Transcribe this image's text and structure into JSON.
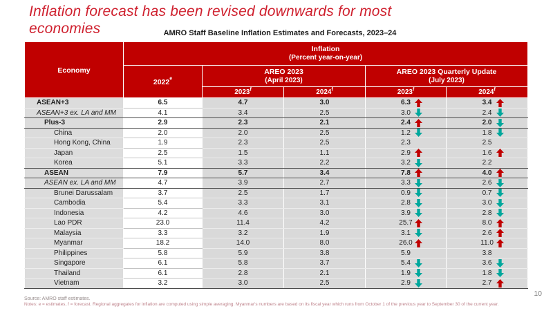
{
  "colors": {
    "header_red": "#c00000",
    "title_red": "#cf202e",
    "arrow_up": "#c00000",
    "arrow_down": "#00a79c",
    "cell_gray": "#d9d9d9"
  },
  "slide": {
    "title": "Inflation forecast has been revised downwards for most economies",
    "page_number": "10"
  },
  "table": {
    "subtitle": "AMRO Staff Baseline Inflation Estimates and Forecasts, 2023–24",
    "header": {
      "economy": "Economy",
      "inflation_line1": "Inflation",
      "inflation_line2": "(Percent year-on-year)",
      "year_2022": "2022",
      "sup_e": "e",
      "areo_line1": "AREO 2023",
      "areo_line2": "(April 2023)",
      "qu_line1": "AREO 2023 Quarterly Update",
      "qu_line2": "(July 2023)",
      "sub_2023": "2023",
      "sub_2024": "2024",
      "sup_f": "f"
    },
    "rows": [
      {
        "name": "ASEAN+3",
        "style": "bold",
        "indent": 1,
        "v2022": "6.5",
        "apr2023": "4.7",
        "apr2024": "3.0",
        "jul2023": "6.3",
        "jul2023_arrow": "up",
        "jul2024": "3.4",
        "jul2024_arrow": "up",
        "sep": false
      },
      {
        "name": "ASEAN+3 ex. LA and MM",
        "style": "italic",
        "indent": 1,
        "v2022": "4.1",
        "apr2023": "3.4",
        "apr2024": "2.5",
        "jul2023": "3.0",
        "jul2023_arrow": "down",
        "jul2024": "2.4",
        "jul2024_arrow": "down",
        "sep": true
      },
      {
        "name": "Plus-3",
        "style": "bold",
        "indent": 2,
        "v2022": "2.9",
        "apr2023": "2.3",
        "apr2024": "2.1",
        "jul2023": "2.4",
        "jul2023_arrow": "up",
        "jul2024": "2.0",
        "jul2024_arrow": "down",
        "sep": true
      },
      {
        "name": "China",
        "style": "plain",
        "indent": 3,
        "v2022": "2.0",
        "apr2023": "2.0",
        "apr2024": "2.5",
        "jul2023": "1.2",
        "jul2023_arrow": "down",
        "jul2024": "1.8",
        "jul2024_arrow": "down",
        "sep": false
      },
      {
        "name": "Hong Kong, China",
        "style": "plain",
        "indent": 3,
        "v2022": "1.9",
        "apr2023": "2.3",
        "apr2024": "2.5",
        "jul2023": "2.3",
        "jul2023_arrow": null,
        "jul2024": "2.5",
        "jul2024_arrow": null,
        "sep": false
      },
      {
        "name": "Japan",
        "style": "plain",
        "indent": 3,
        "v2022": "2.5",
        "apr2023": "1.5",
        "apr2024": "1.1",
        "jul2023": "2.9",
        "jul2023_arrow": "up",
        "jul2024": "1.6",
        "jul2024_arrow": "up",
        "sep": false
      },
      {
        "name": "Korea",
        "style": "plain",
        "indent": 3,
        "v2022": "5.1",
        "apr2023": "3.3",
        "apr2024": "2.2",
        "jul2023": "3.2",
        "jul2023_arrow": "down",
        "jul2024": "2.2",
        "jul2024_arrow": null,
        "sep": true
      },
      {
        "name": "ASEAN",
        "style": "bold",
        "indent": 2,
        "v2022": "7.9",
        "apr2023": "5.7",
        "apr2024": "3.4",
        "jul2023": "7.8",
        "jul2023_arrow": "up",
        "jul2024": "4.0",
        "jul2024_arrow": "up",
        "sep": true
      },
      {
        "name": "ASEAN ex. LA and MM",
        "style": "italic",
        "indent": 2,
        "v2022": "4.7",
        "apr2023": "3.9",
        "apr2024": "2.7",
        "jul2023": "3.3",
        "jul2023_arrow": "down",
        "jul2024": "2.6",
        "jul2024_arrow": "down",
        "sep": true
      },
      {
        "name": "Brunei Darussalam",
        "style": "plain",
        "indent": 3,
        "v2022": "3.7",
        "apr2023": "2.5",
        "apr2024": "1.7",
        "jul2023": "0.9",
        "jul2023_arrow": "down",
        "jul2024": "0.7",
        "jul2024_arrow": "down",
        "sep": false
      },
      {
        "name": "Cambodia",
        "style": "plain",
        "indent": 3,
        "v2022": "5.4",
        "apr2023": "3.3",
        "apr2024": "3.1",
        "jul2023": "2.8",
        "jul2023_arrow": "down",
        "jul2024": "3.0",
        "jul2024_arrow": "down",
        "sep": false
      },
      {
        "name": "Indonesia",
        "style": "plain",
        "indent": 3,
        "v2022": "4.2",
        "apr2023": "4.6",
        "apr2024": "3.0",
        "jul2023": "3.9",
        "jul2023_arrow": "down",
        "jul2024": "2.8",
        "jul2024_arrow": "down",
        "sep": false
      },
      {
        "name": "Lao PDR",
        "style": "plain",
        "indent": 3,
        "v2022": "23.0",
        "apr2023": "11.4",
        "apr2024": "4.2",
        "jul2023": "25.7",
        "jul2023_arrow": "up",
        "jul2024": "8.0",
        "jul2024_arrow": "up",
        "sep": false
      },
      {
        "name": "Malaysia",
        "style": "plain",
        "indent": 3,
        "v2022": "3.3",
        "apr2023": "3.2",
        "apr2024": "1.9",
        "jul2023": "3.1",
        "jul2023_arrow": "down",
        "jul2024": "2.6",
        "jul2024_arrow": "up",
        "sep": false
      },
      {
        "name": "Myanmar",
        "style": "plain",
        "indent": 3,
        "v2022": "18.2",
        "apr2023": "14.0",
        "apr2024": "8.0",
        "jul2023": "26.0",
        "jul2023_arrow": "up",
        "jul2024": "11.0",
        "jul2024_arrow": "up",
        "sep": false
      },
      {
        "name": "Philippines",
        "style": "plain",
        "indent": 3,
        "v2022": "5.8",
        "apr2023": "5.9",
        "apr2024": "3.8",
        "jul2023": "5.9",
        "jul2023_arrow": null,
        "jul2024": "3.8",
        "jul2024_arrow": null,
        "sep": false
      },
      {
        "name": "Singapore",
        "style": "plain",
        "indent": 3,
        "v2022": "6.1",
        "apr2023": "5.8",
        "apr2024": "3.7",
        "jul2023": "5.4",
        "jul2023_arrow": "down",
        "jul2024": "3.6",
        "jul2024_arrow": "down",
        "sep": false
      },
      {
        "name": "Thailand",
        "style": "plain",
        "indent": 3,
        "v2022": "6.1",
        "apr2023": "2.8",
        "apr2024": "2.1",
        "jul2023": "1.9",
        "jul2023_arrow": "down",
        "jul2024": "1.8",
        "jul2024_arrow": "down",
        "sep": false
      },
      {
        "name": "Vietnam",
        "style": "plain",
        "indent": 3,
        "v2022": "3.2",
        "apr2023": "3.0",
        "apr2024": "2.5",
        "jul2023": "2.9",
        "jul2023_arrow": "down",
        "jul2024": "2.7",
        "jul2024_arrow": "up",
        "sep": false
      }
    ]
  },
  "footer": {
    "source": "Source: AMRO staff estimates.",
    "notes": "Notes: e = estimates, f = forecast. Regional aggregates for inflation are computed using simple averaging. Myanmar's numbers are based on its fiscal year which runs from October 1 of the previous year to September 30 of the current year."
  }
}
